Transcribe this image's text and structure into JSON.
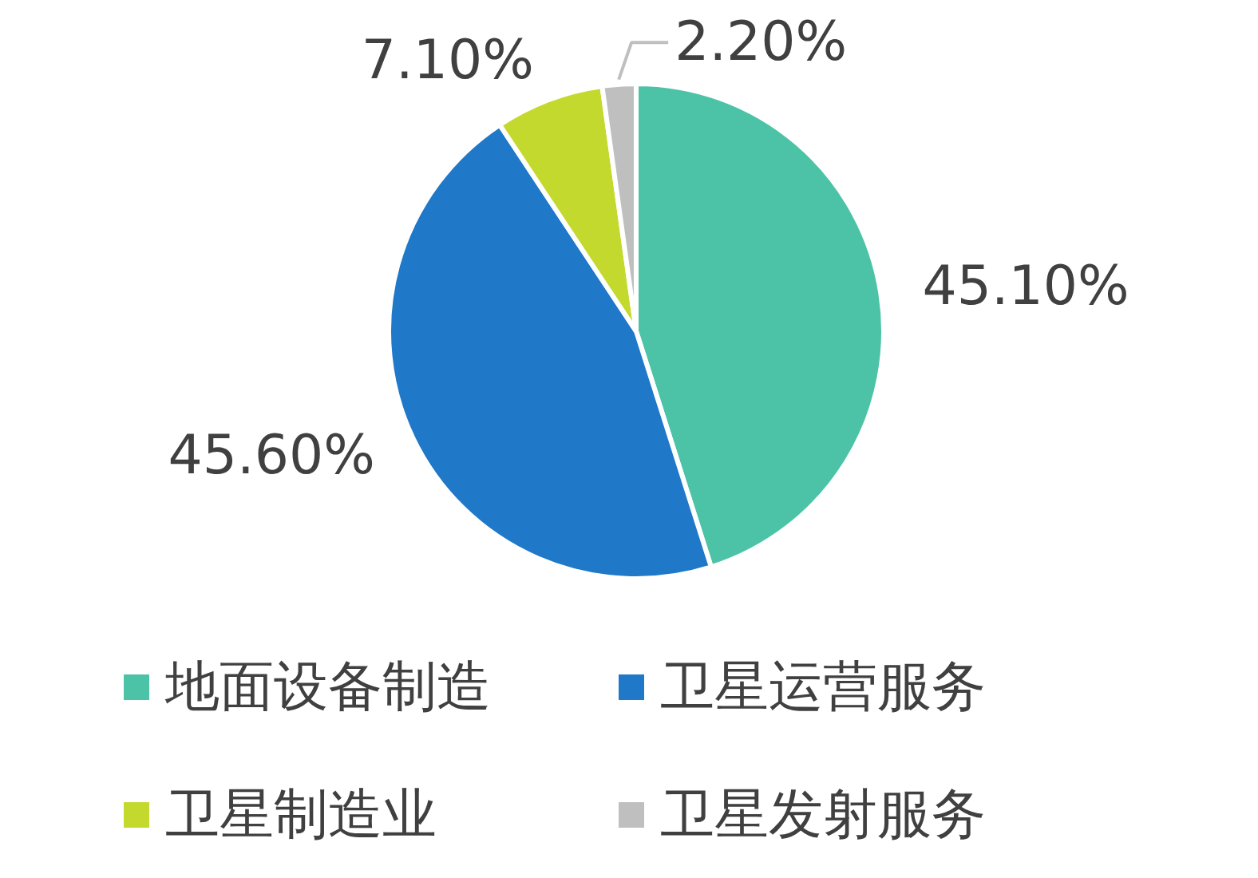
{
  "chart_data": {
    "type": "pie",
    "categories": [
      "地面设备制造",
      "卫星运营服务",
      "卫星制造业",
      "卫星发射服务"
    ],
    "values": [
      45.1,
      45.6,
      7.1,
      2.2
    ],
    "colors": [
      "#4cc3a6",
      "#1f78c8",
      "#c4d92e",
      "#bfbfbf"
    ],
    "value_labels": [
      "45.10%",
      "45.60%",
      "7.10%",
      "2.20%"
    ],
    "legend": "bottom"
  }
}
